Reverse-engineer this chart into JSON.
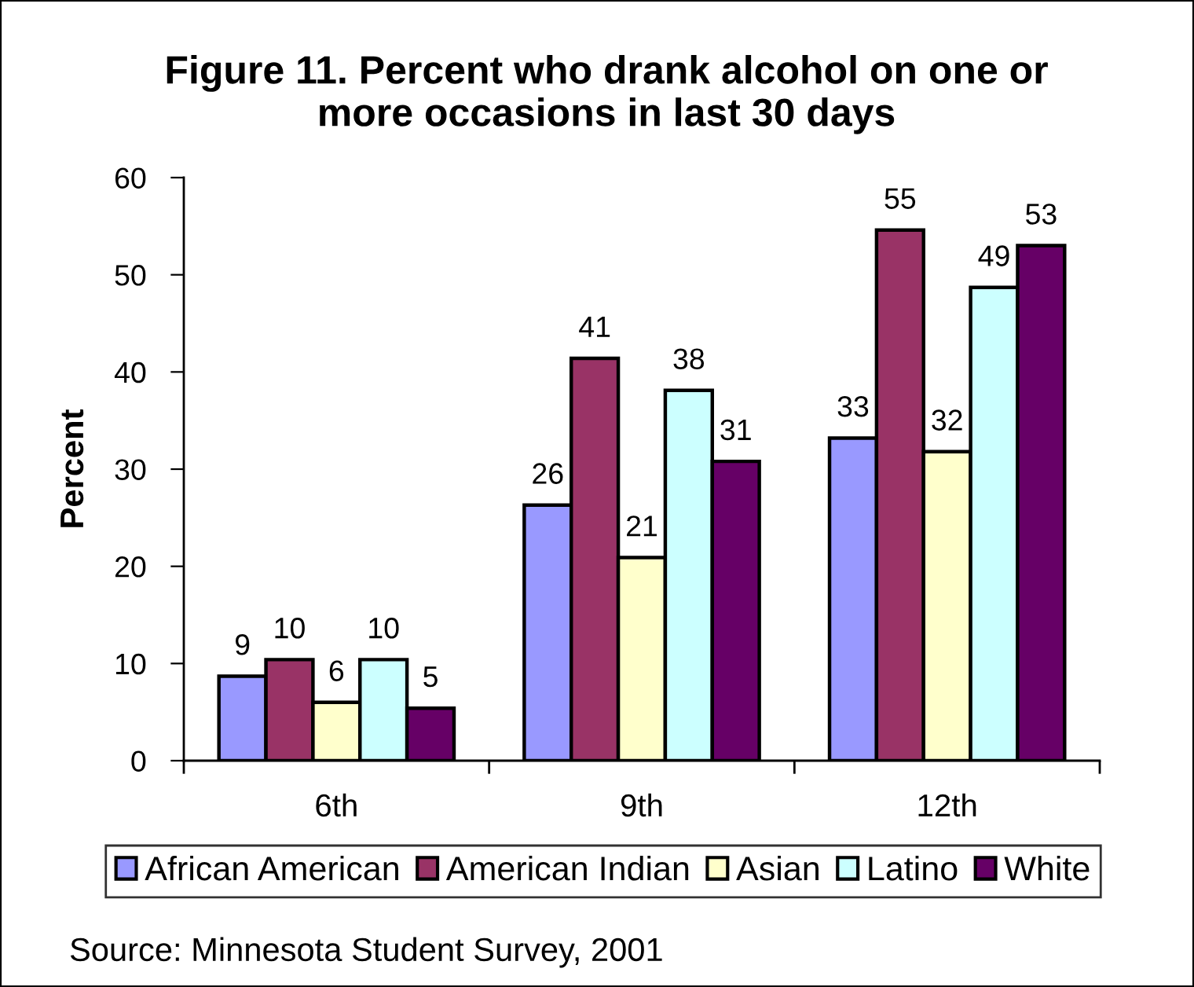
{
  "chart_data": {
    "type": "bar",
    "title": "Figure 11. Percent who drank alcohol on one or\nmore occasions in last 30 days",
    "ylabel": "Percent",
    "categories": [
      "6th",
      "9th",
      "12th"
    ],
    "series": [
      {
        "name": "African American",
        "color": "#9999ff",
        "values": [
          8.7,
          26.3,
          33.2
        ],
        "value_labels": [
          "9",
          "26",
          "33"
        ]
      },
      {
        "name": "American Indian",
        "color": "#993366",
        "values": [
          10.4,
          41.4,
          54.6
        ],
        "value_labels": [
          "10",
          "41",
          "55"
        ]
      },
      {
        "name": "Asian",
        "color": "#ffffcc",
        "values": [
          6.0,
          20.9,
          31.8
        ],
        "value_labels": [
          "6",
          "21",
          "32"
        ]
      },
      {
        "name": "Latino",
        "color": "#ccffff",
        "values": [
          10.4,
          38.1,
          48.7
        ],
        "value_labels": [
          "10",
          "38",
          "49"
        ]
      },
      {
        "name": "White",
        "color": "#660066",
        "values": [
          5.4,
          30.8,
          53.0
        ],
        "value_labels": [
          "5",
          "31",
          "53"
        ]
      }
    ],
    "ylim": [
      0,
      60
    ],
    "yticks": [
      0,
      10,
      20,
      30,
      40,
      50,
      60
    ],
    "grid": false,
    "legend": "bottom",
    "annotations": [
      "Source: Minnesota Student Survey, 2001"
    ]
  }
}
